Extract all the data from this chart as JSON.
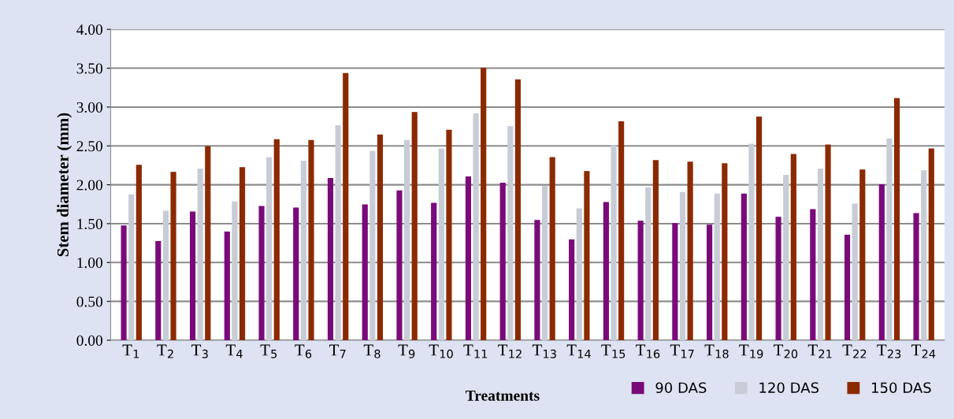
{
  "chart_data": {
    "type": "bar",
    "xlabel": "Treatments",
    "ylabel": "Stem diameter (mm)",
    "categories": [
      "T$_{1}$",
      "T$_{2}$",
      "T$_{3}$",
      "T$_{4}$",
      "T$_{5}$",
      "T$_{6}$",
      "T$_{7}$",
      "T$_{8}$",
      "T$_{9}$",
      "T$_{10}$",
      "T$_{11}$",
      "T$_{12}$",
      "T$_{13}$",
      "T$_{14}$",
      "T$_{15}$",
      "T$_{16}$",
      "T$_{17}$",
      "T$_{18}$",
      "T$_{19}$",
      "T$_{20}$",
      "T$_{21}$",
      "T$_{22}$",
      "T$_{23}$",
      "T$_{24}$"
    ],
    "series": [
      {
        "name": "90 DAS",
        "color": "#7a0a7a",
        "values": [
          1.47,
          1.27,
          1.65,
          1.39,
          1.72,
          1.7,
          2.08,
          1.74,
          1.92,
          1.76,
          2.1,
          2.02,
          1.54,
          1.29,
          1.77,
          1.53,
          1.5,
          1.48,
          1.88,
          1.58,
          1.68,
          1.35,
          2.0,
          1.63
        ]
      },
      {
        "name": "120 DAS",
        "color": "#c8ccd6",
        "values": [
          1.87,
          1.66,
          2.2,
          1.78,
          2.35,
          2.3,
          2.76,
          2.43,
          2.57,
          2.46,
          2.91,
          2.75,
          1.98,
          1.69,
          2.5,
          1.96,
          1.9,
          1.88,
          2.52,
          2.12,
          2.2,
          1.75,
          2.59,
          2.18
        ]
      },
      {
        "name": "150 DAS",
        "color": "#8b2a00",
        "values": [
          2.25,
          2.16,
          2.49,
          2.22,
          2.58,
          2.57,
          3.43,
          2.64,
          2.93,
          2.7,
          3.5,
          3.35,
          2.35,
          2.17,
          2.81,
          2.31,
          2.29,
          2.27,
          2.87,
          2.39,
          2.51,
          2.19,
          3.11,
          2.46
        ]
      }
    ],
    "ylim": [
      0,
      4
    ],
    "yticks": [
      {
        "value": 0,
        "label": "0.00"
      },
      {
        "value": 0.5,
        "label": "0.50"
      },
      {
        "value": 1,
        "label": "1.00"
      },
      {
        "value": 1.5,
        "label": "1.50"
      },
      {
        "value": 2,
        "label": "2.00"
      },
      {
        "value": 2.5,
        "label": "2.50"
      },
      {
        "value": 3,
        "label": "3.00"
      },
      {
        "value": 3.5,
        "label": "3.50"
      },
      {
        "value": 4,
        "label": "4.00"
      }
    ],
    "grid": "y",
    "legend": "bottom right"
  }
}
